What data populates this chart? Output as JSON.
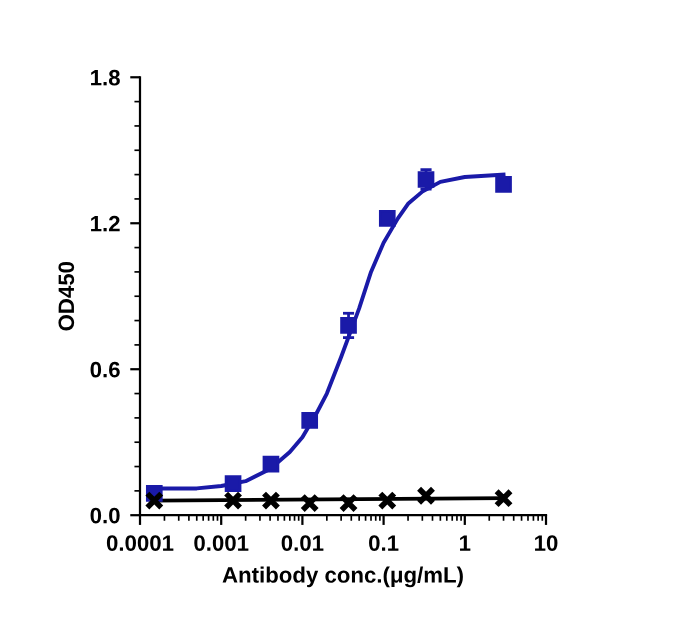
{
  "chart_data": {
    "type": "scatter",
    "xlabel": "Antibody conc.(μg/mL)",
    "ylabel": "OD450",
    "log": "x",
    "xlim": [
      0.0001,
      10
    ],
    "xticks": [
      0.0001,
      0.001,
      0.01,
      0.1,
      1,
      10
    ],
    "ylim": [
      0.0,
      1.8
    ],
    "yticks": [
      {
        "value": 0,
        "label": "0.0"
      },
      0.6,
      1.2,
      1.8
    ],
    "grid": false,
    "series": [
      {
        "marker": "square",
        "color": "#1a1aa8",
        "x": [
          0.00015,
          0.0014,
          0.0041,
          0.0123,
          0.037,
          0.111,
          0.333,
          3.0
        ],
        "values": [
          0.09,
          0.13,
          0.21,
          0.39,
          0.78,
          1.22,
          1.38,
          1.36
        ],
        "errors": [
          null,
          null,
          0.02,
          0.02,
          0.05,
          0.02,
          0.04,
          0.02
        ]
      },
      {
        "type": "line",
        "marker": "none",
        "color": "#1a1aa8",
        "x": [
          0.00015,
          0.0005,
          0.001,
          0.002,
          0.004,
          0.007,
          0.01,
          0.015,
          0.02,
          0.03,
          0.05,
          0.07,
          0.1,
          0.15,
          0.2,
          0.3,
          0.5,
          1,
          3
        ],
        "values": [
          0.11,
          0.11,
          0.12,
          0.14,
          0.19,
          0.26,
          0.32,
          0.42,
          0.5,
          0.65,
          0.85,
          1.0,
          1.12,
          1.22,
          1.28,
          1.33,
          1.37,
          1.39,
          1.4
        ]
      },
      {
        "marker": "cross",
        "color": "#000000",
        "x": [
          0.00015,
          0.0014,
          0.0041,
          0.0123,
          0.037,
          0.111,
          0.333,
          3.0
        ],
        "values": [
          0.06,
          0.06,
          0.06,
          0.05,
          0.05,
          0.06,
          0.08,
          0.07
        ]
      },
      {
        "type": "line",
        "marker": "none",
        "color": "#000000",
        "x": [
          0.00015,
          3
        ],
        "values": [
          0.06,
          0.07
        ]
      }
    ]
  }
}
